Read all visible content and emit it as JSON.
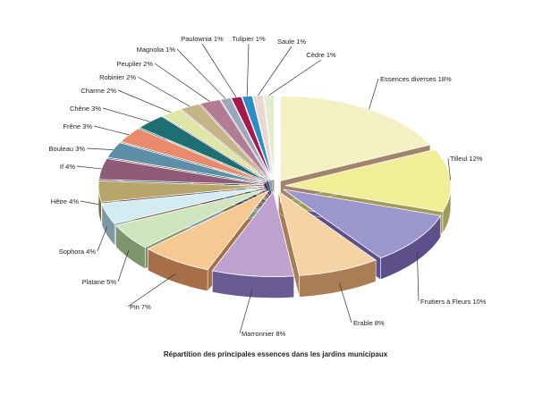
{
  "chart_data": {
    "type": "pie",
    "title": "Répartition des principales essences dans les jardins municipaux",
    "style": "3d-exploded",
    "slices": [
      {
        "label": "Essences diverses 18%",
        "value": 18,
        "color": "#f5f1c4",
        "side": "#a2836c"
      },
      {
        "label": "Tilleul 12%",
        "value": 12,
        "color": "#f0ee96",
        "side": "#a09c55"
      },
      {
        "label": "Fruitiers à Fleurs 10%",
        "value": 10,
        "color": "#9b96cc",
        "side": "#5d4f8a"
      },
      {
        "label": "Erable 8%",
        "value": 8,
        "color": "#f6d3a2",
        "side": "#a97e55"
      },
      {
        "label": "Marronnier 8%",
        "value": 8,
        "color": "#bda1cf",
        "side": "#6a5a92"
      },
      {
        "label": "Pin 7%",
        "value": 7,
        "color": "#f6c892",
        "side": "#a66f48"
      },
      {
        "label": "Platane 5%",
        "value": 5,
        "color": "#cfe5bf",
        "side": "#7f956e"
      },
      {
        "label": "Sophora 4%",
        "value": 4,
        "color": "#d3ecf1",
        "side": "#7b98a3"
      },
      {
        "label": "Hêtre 4%",
        "value": 4,
        "color": "#b7a569",
        "side": "#7a6a3e"
      },
      {
        "label": "If 4%",
        "value": 4,
        "color": "#8e5b78",
        "side": "#5a3a4c"
      },
      {
        "label": "Bouleau 3%",
        "value": 3,
        "color": "#5e8fa8",
        "side": "#3c6174"
      },
      {
        "label": "Frêne 3%",
        "value": 3,
        "color": "#e88a6b",
        "side": "#9a5038"
      },
      {
        "label": "Chêne 3%",
        "value": 3,
        "color": "#1f6e72",
        "side": "#144a4d"
      },
      {
        "label": "Charme 2%",
        "value": 2,
        "color": "#dde6a5",
        "side": "#98a068"
      },
      {
        "label": "Robinier 2%",
        "value": 2,
        "color": "#c6b489",
        "side": "#8a7a57"
      },
      {
        "label": "Peuplier 2%",
        "value": 2,
        "color": "#b27c92",
        "side": "#7a5263"
      },
      {
        "label": "Magnolia 1%",
        "value": 1,
        "color": "#9aa7bd",
        "side": "#66708a"
      },
      {
        "label": "Paulownia 1%",
        "value": 1,
        "color": "#a5194d",
        "side": "#6a0f32"
      },
      {
        "label": "Tulipier 1%",
        "value": 1,
        "color": "#2b8fc6",
        "side": "#1c6088"
      },
      {
        "label": "Saule 1%",
        "value": 1,
        "color": "#ead7d0",
        "side": "#a0928c"
      },
      {
        "label": "Cèdre 1%",
        "value": 1,
        "color": "#e4eccf",
        "side": "#9aa188"
      }
    ]
  }
}
